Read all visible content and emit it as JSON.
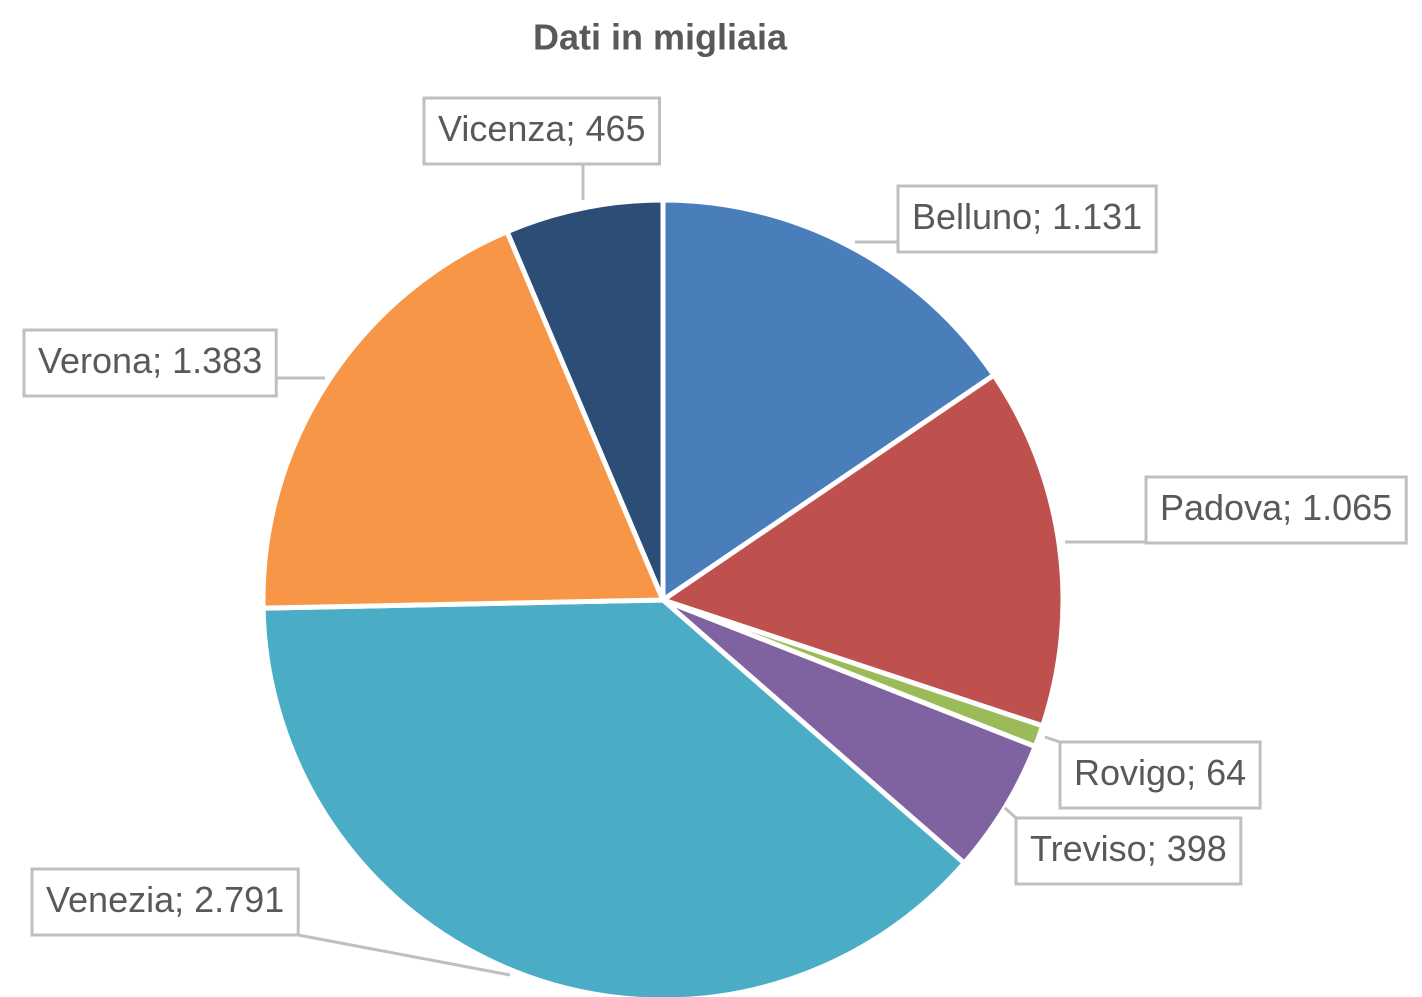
{
  "chart_data": {
    "type": "pie",
    "title": "Dati in migliaia",
    "categories": [
      "Belluno",
      "Padova",
      "Rovigo",
      "Treviso",
      "Venezia",
      "Verona",
      "Vicenza"
    ],
    "values": [
      1131,
      1065,
      64,
      398,
      2791,
      1383,
      465
    ],
    "value_labels": [
      "1.131",
      "1.065",
      "64",
      "398",
      "2.791",
      "1.383",
      "465"
    ],
    "label_separator": "; ",
    "colors": [
      "#4a7ebb",
      "#be504d",
      "#9bbb59",
      "#7f63a1",
      "#4bacc6",
      "#f79646",
      "#2c4d75"
    ]
  }
}
